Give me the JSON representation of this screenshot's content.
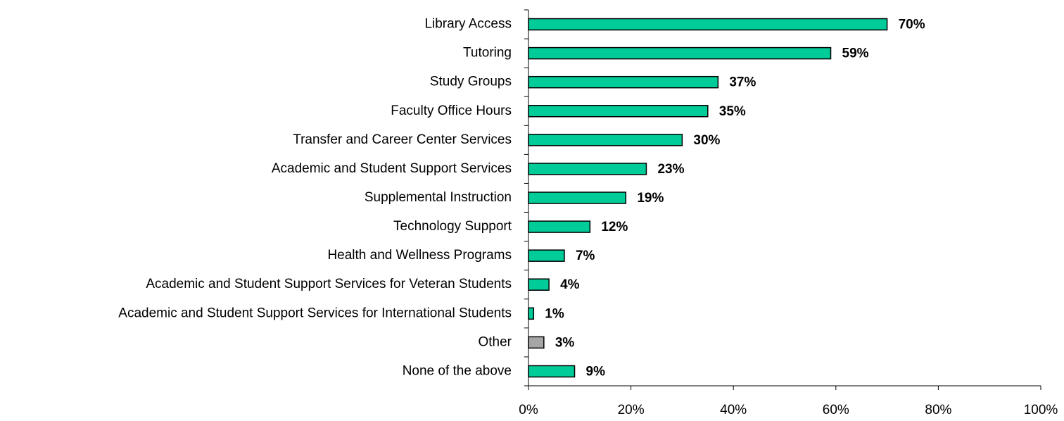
{
  "chart_data": {
    "type": "bar",
    "orientation": "horizontal",
    "categories": [
      "Library Access",
      "Tutoring",
      "Study Groups",
      "Faculty Office Hours",
      "Transfer and Career Center Services",
      "Academic and Student Support Services",
      "Supplemental Instruction",
      "Technology Support",
      "Health and Wellness Programs",
      "Academic and Student Support Services for Veteran Students",
      "Academic and Student Support Services for International Students",
      "Other",
      "None of the above"
    ],
    "values": [
      70,
      59,
      37,
      35,
      30,
      23,
      19,
      12,
      7,
      4,
      1,
      3,
      9
    ],
    "value_labels": [
      "70%",
      "59%",
      "37%",
      "35%",
      "30%",
      "23%",
      "19%",
      "12%",
      "7%",
      "4%",
      "1%",
      "3%",
      "9%"
    ],
    "colors": [
      "#00CC99",
      "#00CC99",
      "#00CC99",
      "#00CC99",
      "#00CC99",
      "#00CC99",
      "#00CC99",
      "#00CC99",
      "#00CC99",
      "#00CC99",
      "#00CC99",
      "#A6A6A6",
      "#00CC99"
    ],
    "xlim": [
      0,
      100
    ],
    "xticks": [
      {
        "value": 0,
        "label": "0%"
      },
      {
        "value": 20,
        "label": "20%"
      },
      {
        "value": 40,
        "label": "40%"
      },
      {
        "value": 60,
        "label": "60%"
      },
      {
        "value": 80,
        "label": "80%"
      },
      {
        "value": 100,
        "label": "100%"
      }
    ],
    "grid": false
  }
}
